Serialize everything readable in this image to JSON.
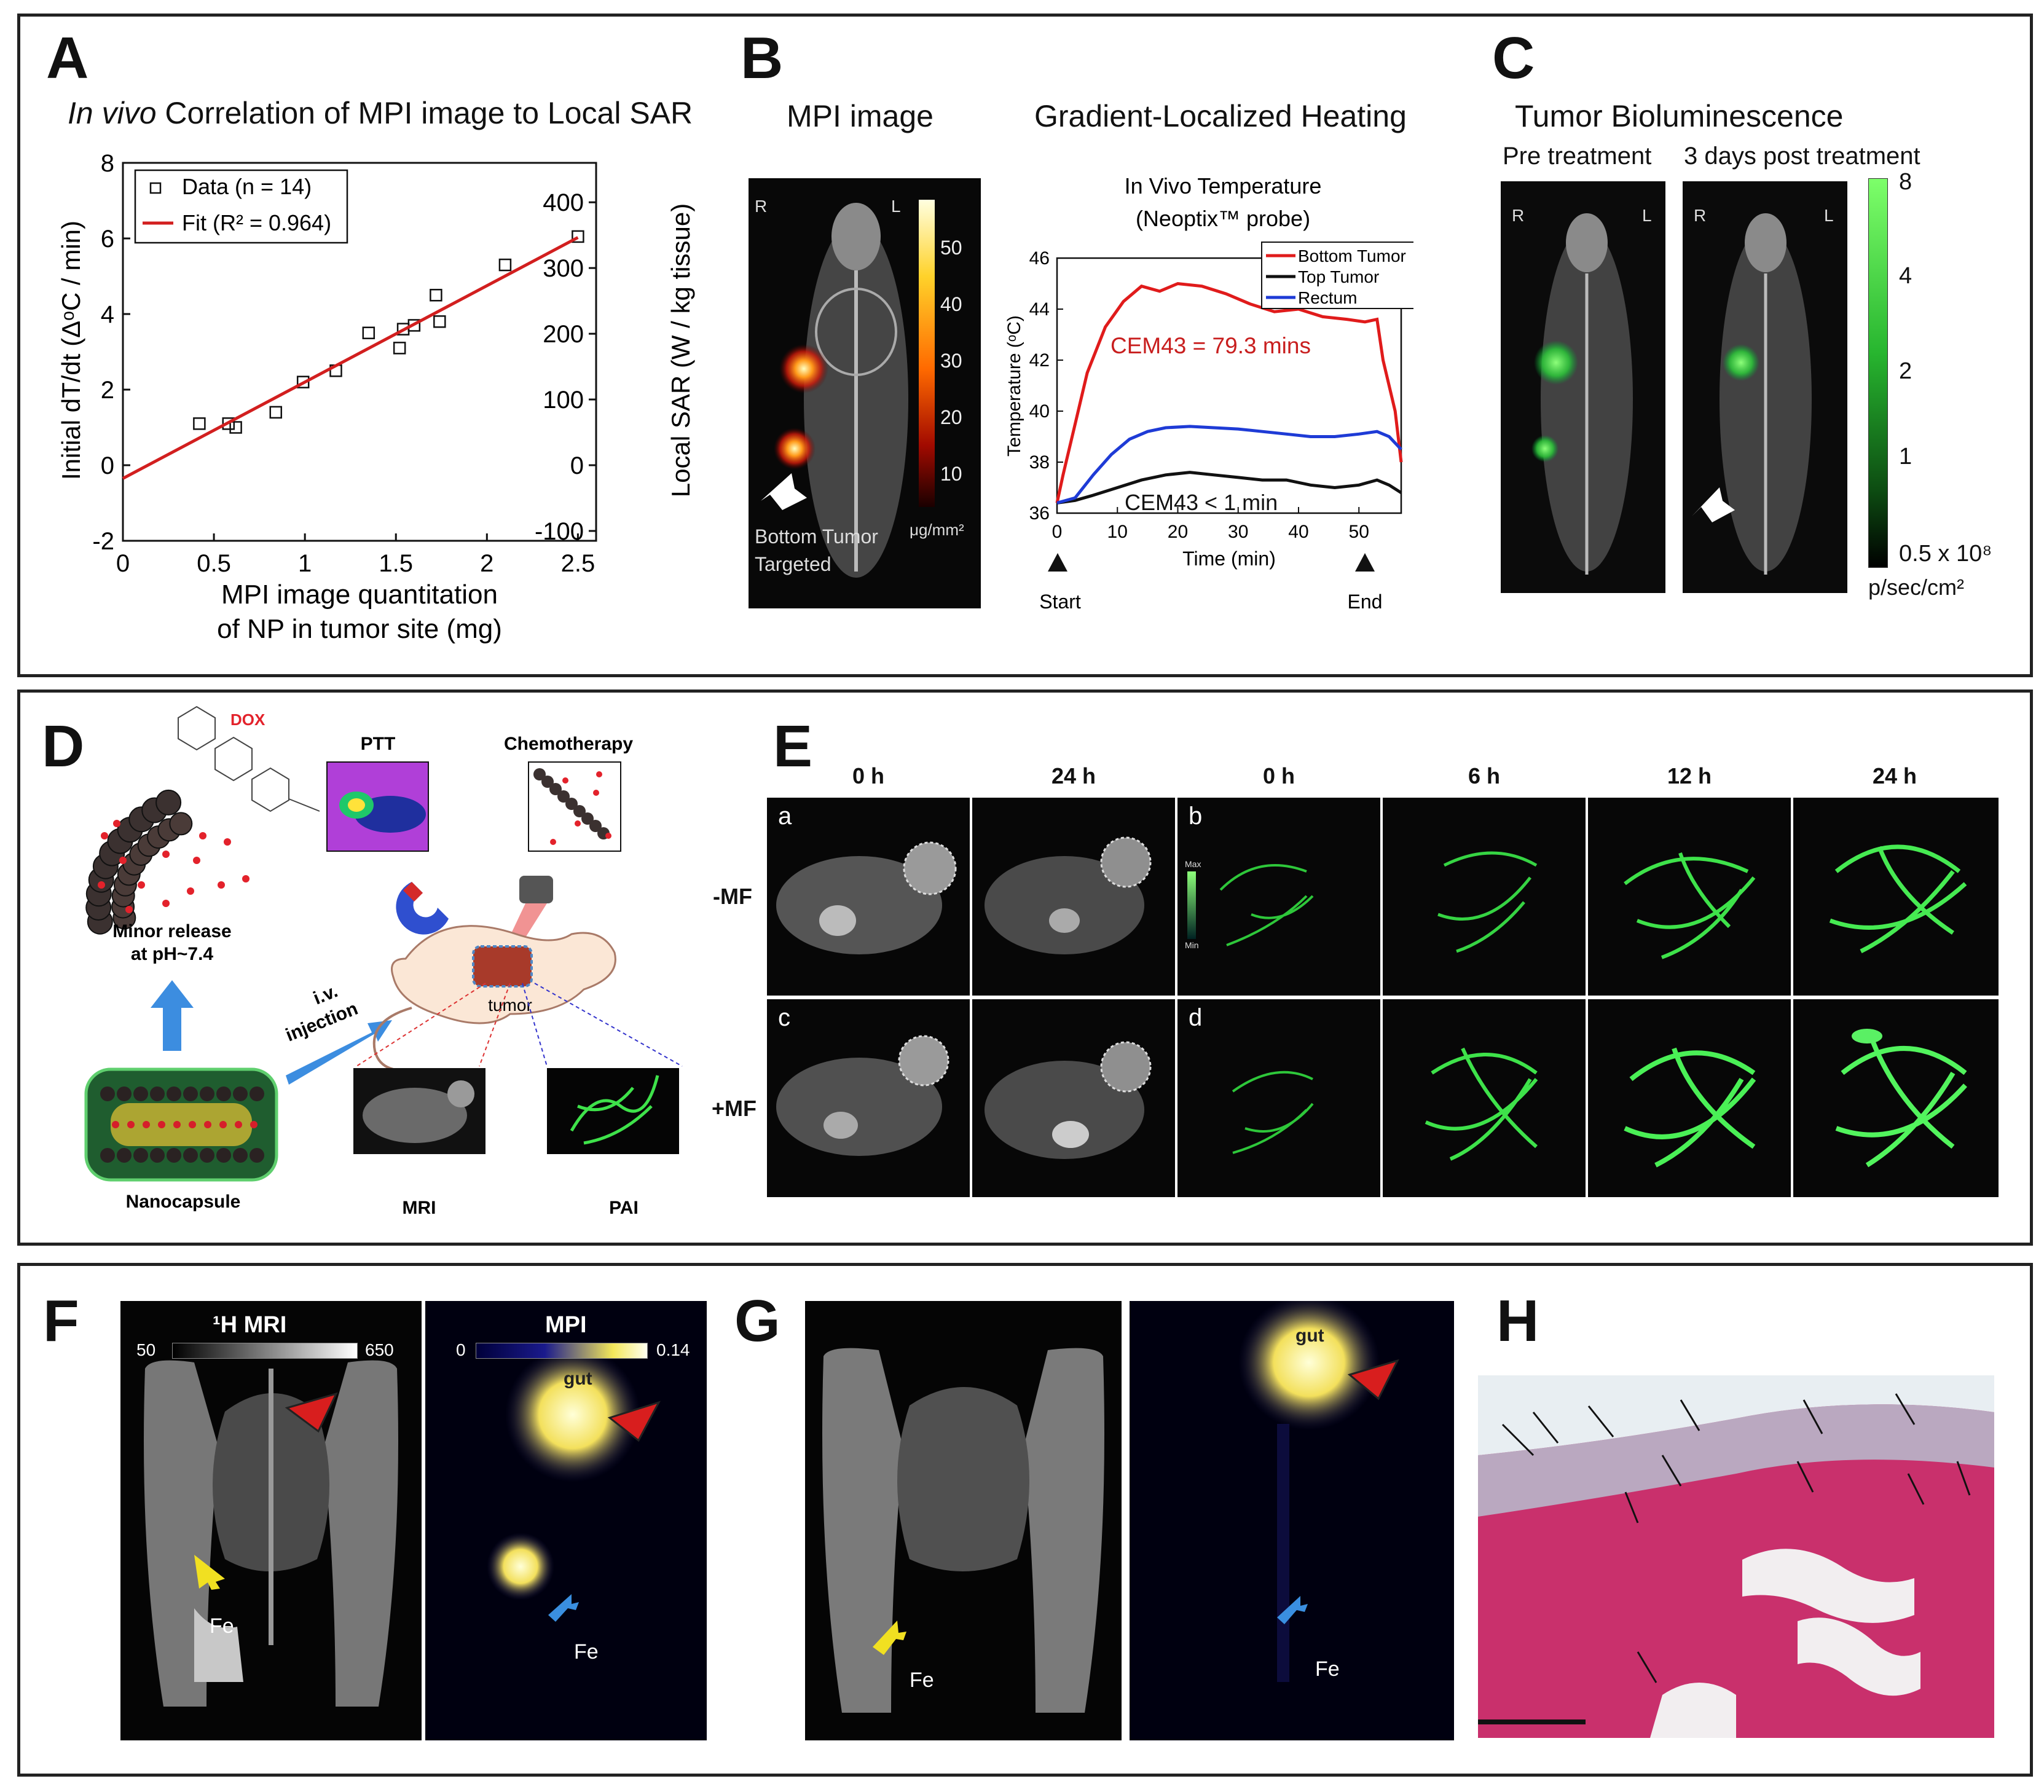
{
  "panelA": {
    "letter": "A",
    "title_italic": "In vivo",
    "title_rest": " Correlation of MPI image to Local SAR",
    "ylabel": "Initial dT/dt (ΔᵒC / min)",
    "y2label": "Local SAR (W / kg tissue)",
    "xlabel_line1": "MPI image quantitation",
    "xlabel_line2": "of NP in tumor site (mg)",
    "legend_data": "Data (n = 14)",
    "legend_fit": "Fit (R² = 0.964)",
    "xticks": [
      "0",
      "0.5",
      "1",
      "1.5",
      "2",
      "2.5"
    ],
    "yticks": [
      "-2",
      "0",
      "2",
      "4",
      "6",
      "8"
    ],
    "y2ticks": [
      "-100",
      "0",
      "100",
      "200",
      "300",
      "400"
    ]
  },
  "panelB": {
    "letter": "B",
    "mpi_title": "MPI image",
    "heat_title": "Gradient-Localized Heating",
    "R": "R",
    "L": "L",
    "caption1": "Bottom Tumor",
    "caption2": "Targeted",
    "cbar_ticks": [
      "50",
      "40",
      "30",
      "20",
      "10"
    ],
    "cbar_unit": "μg/mm²",
    "temp_title1": "In Vivo Temperature",
    "temp_title2": "(Neoptix™ probe)",
    "ylabel": "Temperature (ᵒC)",
    "xlabel": "Time (min)",
    "yticks": [
      "36",
      "38",
      "40",
      "42",
      "44",
      "46"
    ],
    "xticks": [
      "0",
      "10",
      "20",
      "30",
      "40",
      "50"
    ],
    "legend": [
      "Bottom Tumor",
      "Top Tumor",
      "Rectum"
    ],
    "cem_red": "CEM43 = 79.3 mins",
    "cem_black": "CEM43 < 1 min",
    "start": "Start",
    "end": "End"
  },
  "panelC": {
    "letter": "C",
    "title": "Tumor Bioluminescence",
    "pre": "Pre treatment",
    "post": "3 days post treatment",
    "R": "R",
    "L": "L",
    "cbar_ticks": [
      "8",
      "4",
      "2",
      "1",
      "0.5 x 10⁸"
    ],
    "unit": "p/sec/cm²"
  },
  "panelD": {
    "letter": "D",
    "dox": "DOX",
    "minor1": "Minor release",
    "minor2": "at pH~7.4",
    "ptt": "PTT",
    "chemo": "Chemotherapy",
    "iv1": "i.v.",
    "iv2": "injection",
    "tumor": "tumor",
    "nanocapsule": "Nanocapsule",
    "mri": "MRI",
    "pai": "PAI"
  },
  "panelE": {
    "letter": "E",
    "cols": [
      "0 h",
      "24 h",
      "0 h",
      "6 h",
      "12 h",
      "24 h"
    ],
    "rows": [
      "-MF",
      "+MF"
    ],
    "sub": [
      "a",
      "b",
      "c",
      "d"
    ],
    "max": "Max",
    "min": "Min"
  },
  "panelF": {
    "letter": "F",
    "mri_title": "¹H MRI",
    "mri_min": "50",
    "mri_max": "650",
    "mpi_title": "MPI",
    "mpi_min": "0",
    "mpi_max": "0.14",
    "gut": "gut",
    "fe": "Fe"
  },
  "panelG": {
    "letter": "G",
    "gut": "gut",
    "fe": "Fe"
  },
  "panelH": {
    "letter": "H"
  }
}
